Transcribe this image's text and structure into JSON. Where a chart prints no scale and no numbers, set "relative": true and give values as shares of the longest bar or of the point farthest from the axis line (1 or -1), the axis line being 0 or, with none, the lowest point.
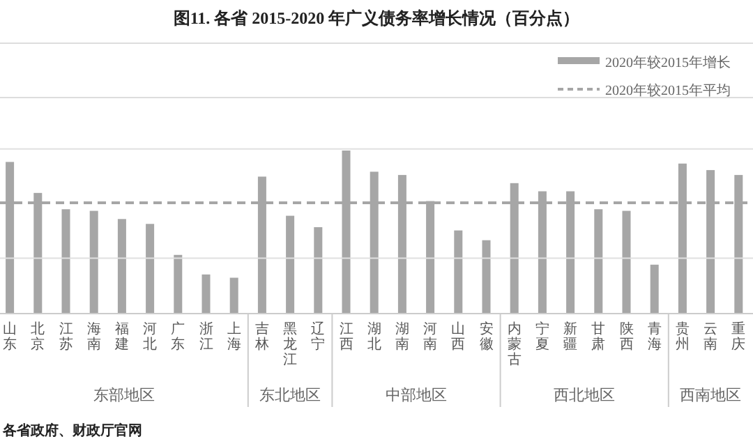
{
  "chart_data": {
    "type": "bar",
    "title": "图11.  各省 2015-2020 年广义债务率增长情况（百分点）",
    "categories": [
      "山东",
      "北京",
      "江苏",
      "海南",
      "福建",
      "河北",
      "广东",
      "浙江",
      "上海",
      "吉林",
      "黑龙江",
      "辽宁",
      "江西",
      "湖北",
      "湖南",
      "河南",
      "山西",
      "安徽",
      "内蒙古",
      "宁夏",
      "新疆",
      "甘肃",
      "陕西",
      "青海",
      "贵州",
      "云南",
      "重庆"
    ],
    "relative": true,
    "series": [
      {
        "name": "2020年较2015年增长",
        "color": "#a6a6a6",
        "values": [
          0.93,
          0.74,
          0.64,
          0.63,
          0.58,
          0.55,
          0.36,
          0.24,
          0.22,
          0.84,
          0.6,
          0.53,
          1,
          0.87,
          0.85,
          0.69,
          0.51,
          0.45,
          0.8,
          0.75,
          0.75,
          0.64,
          0.63,
          0.3,
          0.92,
          0.88,
          0.85
        ]
      }
    ],
    "ref_lines": [
      {
        "axis": "y",
        "value": 0.34,
        "color": "#e0e0e0",
        "line_style": "solid"
      },
      {
        "axis": "y",
        "value": 1.01,
        "color": "#e0e0e0",
        "line_style": "solid"
      },
      {
        "axis": "y",
        "value": 0.68,
        "label": "2020年较2015年平均",
        "color": "#a6a6a6",
        "line_style": "dashed"
      }
    ],
    "legend": "top right",
    "annotations": [
      "东部地区",
      "东北地区",
      "中部地区",
      "西北地区",
      "西南地区",
      "各省政府、财政厅官网"
    ]
  }
}
